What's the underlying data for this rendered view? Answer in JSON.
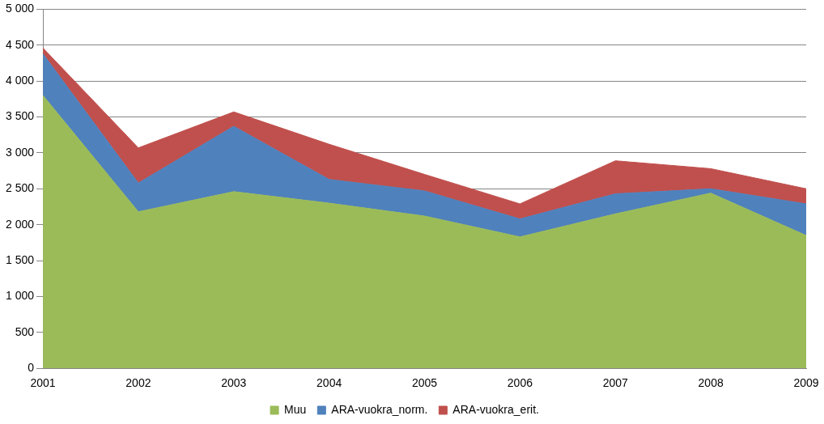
{
  "chart_data": {
    "type": "area",
    "categories": [
      "2001",
      "2002",
      "2003",
      "2004",
      "2005",
      "2006",
      "2007",
      "2008",
      "2009"
    ],
    "series": [
      {
        "name": "Muu",
        "color": "#9bbb59",
        "values": [
          3800,
          2180,
          2460,
          2300,
          2120,
          1830,
          2150,
          2440,
          1850
        ]
      },
      {
        "name": "ARA-vuokra_norm.",
        "color": "#4f81bd",
        "values": [
          580,
          400,
          910,
          330,
          350,
          250,
          280,
          60,
          440
        ]
      },
      {
        "name": "ARA-vuokra_erit.",
        "color": "#c0504d",
        "values": [
          80,
          490,
          200,
          490,
          230,
          210,
          460,
          280,
          210
        ]
      }
    ],
    "ylim": [
      0,
      5000
    ],
    "yticks": [
      0,
      500,
      {
        "value": 1000,
        "label": "1 000"
      },
      {
        "value": 1500,
        "label": "1 500"
      },
      {
        "value": 2000,
        "label": "2 000"
      },
      {
        "value": 2500,
        "label": "2 500"
      },
      {
        "value": 3000,
        "label": "3 000"
      },
      {
        "value": 3500,
        "label": "3 500"
      },
      {
        "value": 4000,
        "label": "4 000"
      },
      {
        "value": 4500,
        "label": "4 500"
      },
      {
        "value": 5000,
        "label": "5 000"
      }
    ],
    "stacked": true,
    "grid": true,
    "legend": "bottom"
  }
}
